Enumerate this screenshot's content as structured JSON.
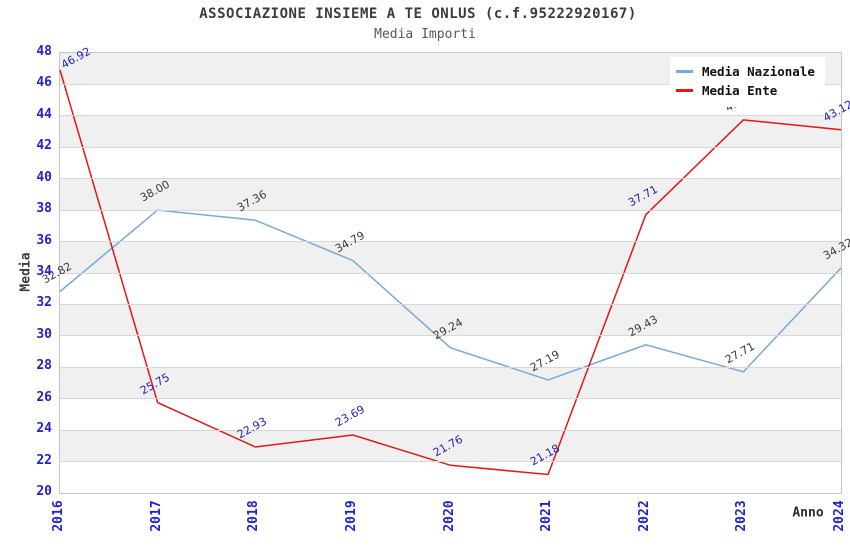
{
  "chart_data": {
    "type": "line",
    "title": "ASSOCIAZIONE INSIEME A TE ONLUS (c.f.95222920167)",
    "subtitle": "Media Importi",
    "xlabel": "Anno",
    "ylabel": "Media",
    "ylim": [
      20,
      48
    ],
    "ytick_step": 2,
    "grid": true,
    "band_fill": "alternating 2-unit gray/white horizontal bands",
    "legend_position": "top-right",
    "categories": [
      "2016",
      "2017",
      "2018",
      "2019",
      "2020",
      "2021",
      "2022",
      "2023",
      "2024"
    ],
    "series": [
      {
        "name": "Media Nazionale",
        "color": "#74aadc",
        "label_color": "#3a3a3a",
        "values": [
          32.82,
          38.0,
          37.36,
          34.79,
          29.24,
          27.19,
          29.43,
          27.71,
          34.32
        ]
      },
      {
        "name": "Media Ente",
        "color": "#e51616",
        "label_color": "#2222b8",
        "values": [
          46.92,
          25.75,
          22.93,
          23.69,
          21.76,
          21.18,
          37.71,
          43.74,
          43.12
        ]
      }
    ]
  },
  "colors": {
    "axis_tick_text": "#2222cc",
    "band_gray": "#f0f0f0",
    "gridline": "#d8d8d8",
    "plot_border": "#c6c6c6",
    "title_text": "#3c3c3c",
    "subtitle_text": "#585858",
    "legend_text": "#111111"
  }
}
